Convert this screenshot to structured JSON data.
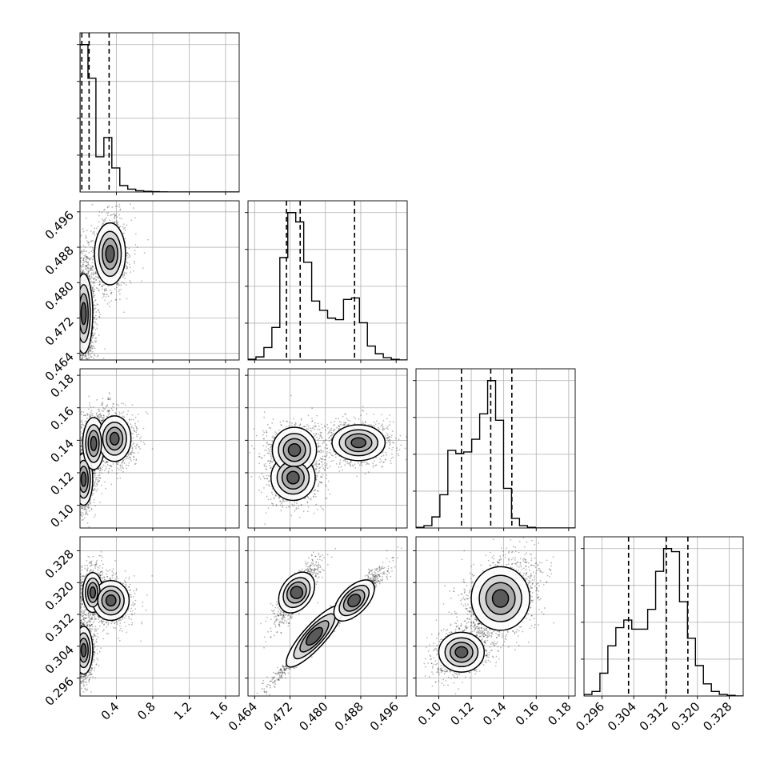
{
  "chart_data": {
    "type": "corner",
    "params": [
      "p0",
      "p1",
      "p2",
      "p3"
    ],
    "ranges": [
      [
        0.0,
        1.75
      ],
      [
        0.4625,
        0.4985
      ],
      [
        0.086,
        0.184
      ],
      [
        0.2915,
        0.3315
      ]
    ],
    "ticks": [
      {
        "values": [
          0.4,
          0.8,
          1.2,
          1.6
        ],
        "labels": [
          "0.4",
          "0.8",
          "1.2",
          "1.6"
        ]
      },
      {
        "values": [
          0.464,
          0.472,
          0.48,
          0.488,
          0.496
        ],
        "labels": [
          "0.464",
          "0.472",
          "0.480",
          "0.488",
          "0.496"
        ]
      },
      {
        "values": [
          0.1,
          0.12,
          0.14,
          0.16,
          0.18
        ],
        "labels": [
          "0.10",
          "0.12",
          "0.14",
          "0.16",
          "0.18"
        ]
      },
      {
        "values": [
          0.296,
          0.304,
          0.312,
          0.32,
          0.328
        ],
        "labels": [
          "0.296",
          "0.304",
          "0.312",
          "0.320",
          "0.328"
        ]
      }
    ],
    "grid": true,
    "marginals": [
      {
        "param": 0,
        "quantiles": [
          0.02,
          0.1,
          0.32
        ],
        "bins": [
          0.0,
          0.0875,
          0.175,
          0.2625,
          0.35,
          0.4375,
          0.525,
          0.6125,
          0.7,
          0.7875,
          0.875,
          0.9625,
          1.05,
          1.1375,
          1.225,
          1.3125,
          1.4,
          1.4875,
          1.575,
          1.6625,
          1.75
        ],
        "counts": [
          0.92,
          0.71,
          0.22,
          0.34,
          0.15,
          0.04,
          0.018,
          0.008,
          0.004,
          0.002,
          0.001,
          0,
          0,
          0,
          0,
          0,
          0,
          0,
          0,
          0
        ]
      },
      {
        "param": 1,
        "quantiles": [
          0.4712,
          0.4743,
          0.4866
        ],
        "bins": [
          0.4625,
          0.4643,
          0.4661,
          0.4679,
          0.4697,
          0.4715,
          0.4733,
          0.4751,
          0.4769,
          0.4787,
          0.4805,
          0.4823,
          0.4841,
          0.4859,
          0.4877,
          0.4895,
          0.4913,
          0.4931,
          0.4949,
          0.4967,
          0.4985
        ],
        "counts": [
          0.005,
          0.02,
          0.08,
          0.21,
          0.66,
          0.95,
          0.89,
          0.63,
          0.38,
          0.32,
          0.27,
          0.26,
          0.39,
          0.4,
          0.24,
          0.09,
          0.04,
          0.015,
          0.004,
          0
        ]
      },
      {
        "param": 2,
        "quantiles": [
          0.114,
          0.132,
          0.145
        ],
        "bins": [
          0.086,
          0.0909,
          0.0958,
          0.1007,
          0.1056,
          0.1105,
          0.1154,
          0.1203,
          0.1252,
          0.1301,
          0.135,
          0.1399,
          0.1448,
          0.1497,
          0.1546,
          0.1595,
          0.1644,
          0.1693,
          0.1742,
          0.1791,
          0.184
        ],
        "counts": [
          0.004,
          0.015,
          0.07,
          0.21,
          0.49,
          0.47,
          0.48,
          0.56,
          0.72,
          0.93,
          0.68,
          0.25,
          0.06,
          0.015,
          0.004,
          0,
          0,
          0,
          0,
          0
        ]
      },
      {
        "param": 3,
        "quantiles": [
          0.3027,
          0.3122,
          0.3176
        ],
        "bins": [
          0.2915,
          0.2935,
          0.2955,
          0.2975,
          0.2995,
          0.3015,
          0.3035,
          0.3055,
          0.3075,
          0.3095,
          0.3115,
          0.3135,
          0.3155,
          0.3175,
          0.3195,
          0.3215,
          0.3235,
          0.3255,
          0.3275,
          0.3295,
          0.3315
        ],
        "counts": [
          0.01,
          0.03,
          0.15,
          0.33,
          0.45,
          0.5,
          0.44,
          0.44,
          0.57,
          0.82,
          0.97,
          0.95,
          0.62,
          0.38,
          0.2,
          0.08,
          0.03,
          0.01,
          0.004,
          0
        ]
      }
    ],
    "joints": [
      {
        "x": 0,
        "y": 1,
        "blobs": [
          {
            "cx": 0.04,
            "cy": 0.473,
            "sx": 0.05,
            "sy": 0.0045,
            "rho": 0,
            "w": 0.65
          },
          {
            "cx": 0.33,
            "cy": 0.4865,
            "sx": 0.085,
            "sy": 0.0035,
            "rho": 0,
            "w": 0.35
          }
        ]
      },
      {
        "x": 0,
        "y": 2,
        "blobs": [
          {
            "cx": 0.04,
            "cy": 0.116,
            "sx": 0.05,
            "sy": 0.008,
            "rho": 0,
            "w": 0.33
          },
          {
            "cx": 0.15,
            "cy": 0.138,
            "sx": 0.06,
            "sy": 0.008,
            "rho": 0,
            "w": 0.33
          },
          {
            "cx": 0.38,
            "cy": 0.141,
            "sx": 0.09,
            "sy": 0.007,
            "rho": 0,
            "w": 0.34
          }
        ]
      },
      {
        "x": 0,
        "y": 3,
        "blobs": [
          {
            "cx": 0.04,
            "cy": 0.303,
            "sx": 0.05,
            "sy": 0.003,
            "rho": 0,
            "w": 0.4
          },
          {
            "cx": 0.14,
            "cy": 0.3175,
            "sx": 0.055,
            "sy": 0.0025,
            "rho": 0,
            "w": 0.33
          },
          {
            "cx": 0.34,
            "cy": 0.3155,
            "sx": 0.1,
            "sy": 0.0025,
            "rho": 0,
            "w": 0.27
          }
        ]
      },
      {
        "x": 1,
        "y": 2,
        "blobs": [
          {
            "cx": 0.4727,
            "cy": 0.117,
            "sx": 0.0025,
            "sy": 0.007,
            "rho": 0,
            "w": 0.35
          },
          {
            "cx": 0.473,
            "cy": 0.134,
            "sx": 0.0025,
            "sy": 0.007,
            "rho": 0,
            "w": 0.3
          },
          {
            "cx": 0.4875,
            "cy": 0.1385,
            "sx": 0.003,
            "sy": 0.0055,
            "rho": 0,
            "w": 0.35
          }
        ]
      },
      {
        "x": 1,
        "y": 3,
        "blobs": [
          {
            "cx": 0.4735,
            "cy": 0.3175,
            "sx": 0.002,
            "sy": 0.0032,
            "rho": 0.85,
            "w": 0.3
          },
          {
            "cx": 0.4775,
            "cy": 0.3065,
            "sx": 0.0042,
            "sy": 0.0052,
            "rho": 0.985,
            "w": 0.35
          },
          {
            "cx": 0.4865,
            "cy": 0.3155,
            "sx": 0.0028,
            "sy": 0.0032,
            "rho": 0.95,
            "w": 0.35
          }
        ]
      },
      {
        "x": 2,
        "y": 3,
        "blobs": [
          {
            "cx": 0.114,
            "cy": 0.3025,
            "sx": 0.007,
            "sy": 0.0025,
            "rho": 0.3,
            "w": 0.35
          },
          {
            "cx": 0.138,
            "cy": 0.316,
            "sx": 0.009,
            "sy": 0.004,
            "rho": 0.35,
            "w": 0.65
          }
        ]
      }
    ]
  }
}
